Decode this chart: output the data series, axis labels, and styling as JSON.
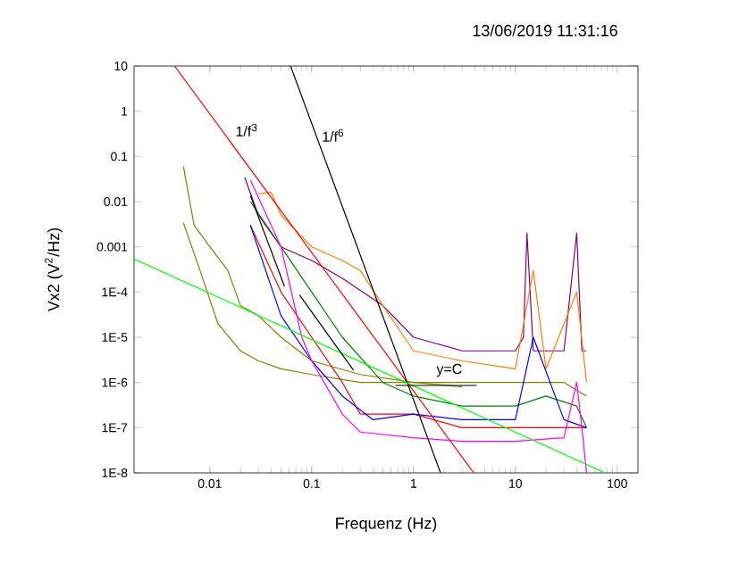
{
  "chart_data": {
    "type": "line",
    "title": "13/06/2019 11:31:16",
    "xlabel": "Frequenz (Hz)",
    "ylabel": "Vx2 (V$^{2}$/Hz)",
    "log": "xy",
    "grid": false,
    "marker": "none",
    "line_style": "solid",
    "xlim": [
      0.0018,
      160
    ],
    "ylim": [
      1e-08,
      10
    ],
    "xticks": [
      0.01,
      0.1,
      1,
      10,
      100
    ],
    "yticks": [
      10,
      1,
      0.1,
      0.01,
      0.001,
      {
        "value": 0.0001,
        "label": "1E-4"
      },
      {
        "value": 1e-05,
        "label": "1E-5"
      },
      {
        "value": 1e-06,
        "label": "1E-6"
      },
      {
        "value": 1e-07,
        "label": "1E-7"
      },
      {
        "value": 1e-08,
        "label": "1E-8"
      }
    ],
    "annotations": [
      {
        "text": "1/f$^{3}$",
        "x": 0.017,
        "y": 0.25
      },
      {
        "text": "1/f$^{6}$",
        "x": 0.12,
        "y": 0.19
      },
      {
        "text": "y=C",
        "x": 1.6,
        "y": 1.2e-06
      }
    ],
    "series": [
      {
        "color": "#808000",
        "x": [
          0.0055,
          0.007,
          0.01,
          0.015,
          0.02,
          0.03,
          0.05,
          0.1,
          0.3,
          1,
          3,
          10,
          30,
          50
        ],
        "values": [
          0.06,
          0.003,
          0.001,
          0.0003,
          5e-05,
          3e-05,
          1e-05,
          3e-06,
          1.5e-06,
          1e-06,
          1e-06,
          1e-06,
          1e-06,
          5e-07
        ]
      },
      {
        "color": "#808000",
        "x": [
          0.0055,
          0.008,
          0.012,
          0.02,
          0.03,
          0.05,
          0.1,
          0.3,
          1,
          3
        ],
        "values": [
          0.0034,
          0.0003,
          2e-05,
          5e-06,
          3e-06,
          2e-06,
          1.5e-06,
          1e-06,
          1e-06,
          8e-07
        ]
      },
      {
        "color": "#800080",
        "x": [
          0.022,
          0.03,
          0.05,
          0.1,
          0.2,
          0.5,
          1,
          3,
          10,
          12,
          13,
          15,
          20,
          30,
          40,
          45,
          50
        ],
        "values": [
          0.034,
          0.005,
          0.001,
          0.0005,
          0.0002,
          5e-05,
          1e-05,
          5e-06,
          5e-06,
          1e-05,
          0.002,
          5e-06,
          5e-06,
          5e-06,
          0.002,
          5e-06,
          5e-06
        ]
      },
      {
        "color": "#ff8000",
        "x": [
          0.03,
          0.04,
          0.05,
          0.1,
          0.2,
          0.3,
          0.5,
          1,
          3,
          10,
          15,
          20,
          40,
          50
        ],
        "values": [
          0.015,
          0.016,
          0.005,
          0.001,
          0.0005,
          0.0003,
          5e-05,
          5e-06,
          3e-06,
          2e-06,
          0.0003,
          2e-06,
          0.0001,
          1e-06
        ]
      },
      {
        "color": "#008000",
        "x": [
          0.025,
          0.05,
          0.1,
          0.2,
          0.5,
          1,
          3,
          10,
          20,
          40,
          50
        ],
        "values": [
          0.01,
          0.001,
          0.0001,
          1e-05,
          1e-06,
          5e-07,
          3e-07,
          3e-07,
          5e-07,
          3e-07,
          1e-07
        ]
      },
      {
        "color": "#ff0000",
        "x": [
          0.025,
          0.05,
          0.1,
          0.2,
          0.3,
          1,
          3,
          10,
          30,
          50
        ],
        "values": [
          0.003,
          0.0001,
          1e-05,
          1e-06,
          2e-07,
          2e-07,
          1e-07,
          1e-07,
          1e-07,
          1e-07
        ]
      },
      {
        "color": "#0000ff",
        "x": [
          0.025,
          0.05,
          0.1,
          0.2,
          0.4,
          1,
          3,
          10,
          15,
          30,
          50
        ],
        "values": [
          0.003,
          3e-05,
          3e-06,
          5e-07,
          1.5e-07,
          2e-07,
          1.5e-07,
          1.5e-07,
          1e-05,
          1.5e-07,
          1e-07
        ]
      },
      {
        "color": "#ff00ff",
        "x": [
          0.025,
          0.05,
          0.08,
          0.1,
          0.2,
          0.3,
          1,
          3,
          10,
          30,
          40,
          45,
          50
        ],
        "values": [
          0.03,
          0.001,
          1e-05,
          3e-06,
          2e-07,
          8e-08,
          6e-08,
          5e-08,
          5e-08,
          6e-08,
          1e-06,
          1e-07,
          1e-08
        ]
      },
      {
        "color": "#ff0000",
        "x": [
          0.0045,
          3.9
        ],
        "values": [
          10,
          1e-08
        ]
      },
      {
        "color": "#000000",
        "x": [
          0.062,
          1.84
        ],
        "values": [
          10,
          1e-08
        ]
      },
      {
        "color": "#00ff00",
        "x": [
          0.0018,
          76
        ],
        "values": [
          0.00054,
          1e-08
        ]
      },
      {
        "color": "#000000",
        "x": [
          0.025,
          0.054
        ],
        "values": [
          0.0135,
          0.000135
        ]
      },
      {
        "color": "#000000",
        "x": [
          0.076,
          0.258
        ],
        "values": [
          8.6e-05,
          1.85e-06
        ]
      },
      {
        "color": "#000000",
        "x": [
          0.666,
          4.15
        ],
        "values": [
          8.6e-07,
          8.6e-07
        ]
      }
    ]
  }
}
